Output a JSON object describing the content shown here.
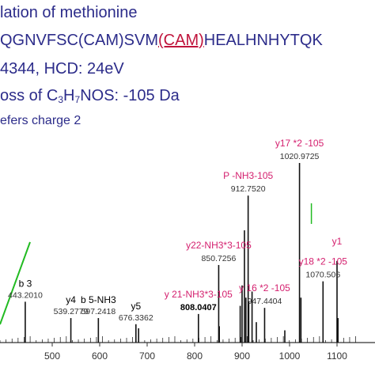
{
  "header": {
    "line1": "lation of methionine",
    "line2_before": "QGNVFSC(CAM)SVM",
    "line2_red": "(CAM)",
    "line2_after": "HEALHNHYTQK",
    "line3": "4344, HCD: 24eV",
    "line4_before": "oss of C",
    "line4_sub1": "3",
    "line4_mid": "H",
    "line4_sub2": "7",
    "line4_after": "NOS: -105 Da",
    "line5": "efers charge 2"
  },
  "colors": {
    "header_text": "#2c2c8a",
    "annotation_red": "#d41f6e",
    "mz_label": "#333333",
    "peak": "#111111",
    "green_marker": "#22bb22",
    "axis": "#333333"
  },
  "chart_data": {
    "type": "bar",
    "xlim": [
      390,
      1160
    ],
    "xticks": [
      500,
      600,
      700,
      800,
      900,
      1000,
      1100
    ],
    "grid": false,
    "legend": "none",
    "peaks": [
      {
        "mz": 443.201,
        "h": 0.2
      },
      {
        "mz": 539.2779,
        "h": 0.12
      },
      {
        "mz": 597.2418,
        "h": 0.12
      },
      {
        "mz": 676.3362,
        "h": 0.09
      },
      {
        "mz": 682.0,
        "h": 0.07
      },
      {
        "mz": 808.0407,
        "h": 0.14
      },
      {
        "mz": 850.7256,
        "h": 0.38
      },
      {
        "mz": 852.0,
        "h": 0.08
      },
      {
        "mz": 896.0,
        "h": 0.18
      },
      {
        "mz": 900.0,
        "h": 0.28
      },
      {
        "mz": 905.0,
        "h": 0.55
      },
      {
        "mz": 908.0,
        "h": 0.22
      },
      {
        "mz": 912.752,
        "h": 0.72
      },
      {
        "mz": 914.0,
        "h": 0.2
      },
      {
        "mz": 921.0,
        "h": 0.25
      },
      {
        "mz": 930.0,
        "h": 0.1
      },
      {
        "mz": 947.4404,
        "h": 0.17
      },
      {
        "mz": 990.0,
        "h": 0.06
      },
      {
        "mz": 1020.9725,
        "h": 0.88
      },
      {
        "mz": 1024.0,
        "h": 0.22
      },
      {
        "mz": 1070.506,
        "h": 0.3
      },
      {
        "mz": 1100.0,
        "h": 0.4
      },
      {
        "mz": 1102.0,
        "h": 0.12
      }
    ],
    "mz_labels": [
      {
        "mz": 443.201,
        "text": "443.2010"
      },
      {
        "mz": 539.2779,
        "text": "539.2779"
      },
      {
        "mz": 597.2418,
        "text": "597.2418"
      },
      {
        "mz": 676.3362,
        "text": "676.3362"
      },
      {
        "mz": 808.0407,
        "text": "808.0407",
        "bold": true
      },
      {
        "mz": 850.7256,
        "text": "850.7256"
      },
      {
        "mz": 912.752,
        "text": "912.7520"
      },
      {
        "mz": 947.4404,
        "text": "947.4404"
      },
      {
        "mz": 1020.9725,
        "text": "1020.9725"
      },
      {
        "mz": 1070.506,
        "text": "1070.506"
      }
    ],
    "ion_labels": [
      {
        "mz": 443.201,
        "text": "b 3",
        "color": "black"
      },
      {
        "mz": 539.2779,
        "text": "y4",
        "color": "black"
      },
      {
        "mz": 597.2418,
        "text": "b 5-NH3",
        "color": "black"
      },
      {
        "mz": 676.3362,
        "text": "y5",
        "color": "black"
      },
      {
        "mz": 808.0407,
        "text": "y 21-NH3*3-105",
        "color": "red"
      },
      {
        "mz": 850.7256,
        "text": "y22-NH3*3-105",
        "color": "red"
      },
      {
        "mz": 912.752,
        "text": "P -NH3-105",
        "color": "red"
      },
      {
        "mz": 947.4404,
        "text": "y 16 *2 -105",
        "color": "red"
      },
      {
        "mz": 1020.9725,
        "text": "y17 *2 -105",
        "color": "red"
      },
      {
        "mz": 1070.506,
        "text": "y18 *2 -105",
        "color": "red"
      },
      {
        "mz": 1100.0,
        "text": "y1",
        "color": "red"
      }
    ]
  }
}
